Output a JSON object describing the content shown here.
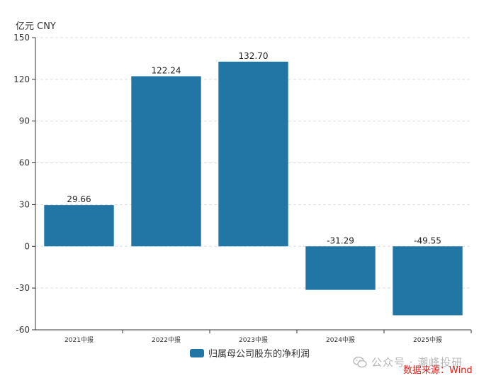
{
  "unit_label": "亿元  CNY",
  "legend": {
    "label": "归属母公司股东的净利润",
    "color": "#2176a5"
  },
  "watermark": {
    "text": "公众号 · 潮峰投研",
    "icon": "wechat-icon"
  },
  "source_text": "数据来源：Wind",
  "colors": {
    "bar": "#2176a5",
    "axis": "#333333",
    "grid": "#dddddd"
  },
  "chart_data": {
    "type": "bar",
    "categories": [
      "2021中报",
      "2022中报",
      "2023中报",
      "2024中报",
      "2025中报"
    ],
    "series": [
      {
        "name": "归属母公司股东的净利润",
        "values": [
          29.66,
          122.24,
          132.7,
          -31.29,
          -49.55
        ]
      }
    ],
    "data_labels": [
      "29.66",
      "122.24",
      "132.70",
      "-31.29",
      "-49.55"
    ],
    "ylim": [
      -60,
      150
    ],
    "yticks": [
      150,
      120,
      90,
      60,
      30,
      0,
      -30,
      -60
    ],
    "grid": true,
    "legend_position": "bottom-center"
  }
}
